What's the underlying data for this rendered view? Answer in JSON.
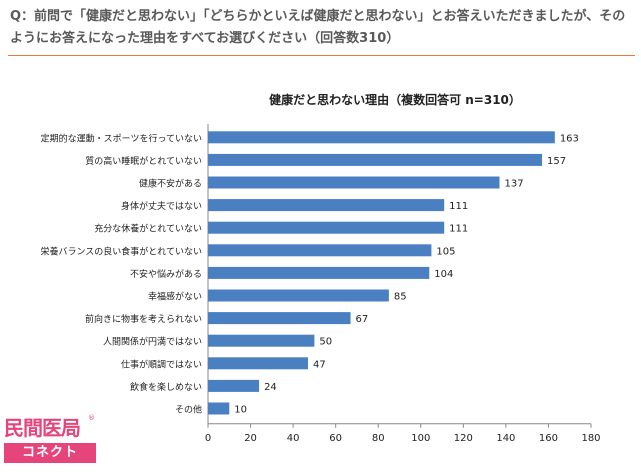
{
  "question": {
    "text": "Q：前問で「健康だと思わない」「どちらかといえば健康だと思わない」とお答えいただきましたが、そのようにお答えになった理由をすべてお選びください（回答数310）"
  },
  "logo": {
    "top_text": "民間医局",
    "bottom_text": "コネクト",
    "mark": "®"
  },
  "colors": {
    "bar": "#4a7fc1",
    "accent": "#e8793a",
    "brand": "#e5457a"
  },
  "chart_data": {
    "type": "bar",
    "orientation": "horizontal",
    "title": "健康だと思わない理由（複数回答可 n=310）",
    "categories": [
      "定期的な運動・スポーツを行っていない",
      "質の高い睡眠がとれていない",
      "健康不安がある",
      "身体が丈夫ではない",
      "充分な休養がとれていない",
      "栄養バランスの良い食事がとれていない",
      "不安や悩みがある",
      "幸福感がない",
      "前向きに物事を考えられない",
      "人間関係が円満ではない",
      "仕事が順調ではない",
      "飲食を楽しめない",
      "その他"
    ],
    "values": [
      163,
      157,
      137,
      111,
      111,
      105,
      104,
      85,
      67,
      50,
      47,
      24,
      10
    ],
    "xlim": [
      0,
      180
    ],
    "xticks": [
      0,
      20,
      40,
      60,
      80,
      100,
      120,
      140,
      160,
      180
    ],
    "grid": false,
    "legend": "none"
  }
}
